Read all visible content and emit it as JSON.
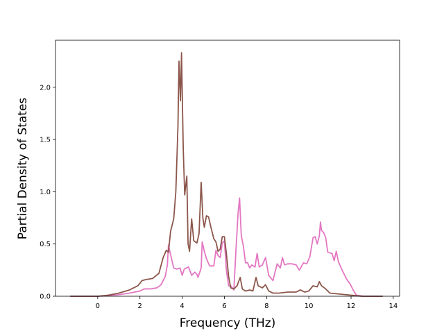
{
  "chart_data": {
    "type": "line",
    "title": "",
    "xlabel": "Frequency (THz)",
    "ylabel": "Partial Density of States",
    "xlim": [
      -2,
      14.3
    ],
    "ylim": [
      0.0,
      2.45
    ],
    "xticks": [
      0,
      2,
      4,
      6,
      8,
      10,
      12,
      14
    ],
    "xtick_labels": [
      "0",
      "2",
      "4",
      "6",
      "8",
      "10",
      "12",
      "14"
    ],
    "yticks": [
      0.0,
      0.5,
      1.0,
      1.5,
      2.0
    ],
    "ytick_labels": [
      "0.0",
      "0.5",
      "1.0",
      "1.5",
      "2.0"
    ],
    "grid": false,
    "series": [
      {
        "color": "#e377c2",
        "points": [
          [
            -1.3,
            0.0
          ],
          [
            0.0,
            0.0
          ],
          [
            0.5,
            0.005
          ],
          [
            1.0,
            0.015
          ],
          [
            1.5,
            0.03
          ],
          [
            2.0,
            0.05
          ],
          [
            2.2,
            0.07
          ],
          [
            2.5,
            0.07
          ],
          [
            2.8,
            0.08
          ],
          [
            3.0,
            0.11
          ],
          [
            3.2,
            0.19
          ],
          [
            3.3,
            0.3
          ],
          [
            3.35,
            0.49
          ],
          [
            3.45,
            0.4
          ],
          [
            3.6,
            0.27
          ],
          [
            3.75,
            0.26
          ],
          [
            3.9,
            0.27
          ],
          [
            4.0,
            0.2
          ],
          [
            4.1,
            0.26
          ],
          [
            4.2,
            0.27
          ],
          [
            4.3,
            0.28
          ],
          [
            4.45,
            0.2
          ],
          [
            4.6,
            0.23
          ],
          [
            4.7,
            0.21
          ],
          [
            4.75,
            0.18
          ],
          [
            4.9,
            0.27
          ],
          [
            4.95,
            0.52
          ],
          [
            5.05,
            0.43
          ],
          [
            5.15,
            0.36
          ],
          [
            5.3,
            0.29
          ],
          [
            5.5,
            0.29
          ],
          [
            5.6,
            0.44
          ],
          [
            5.7,
            0.39
          ],
          [
            5.8,
            0.37
          ],
          [
            5.9,
            0.51
          ],
          [
            6.0,
            0.53
          ],
          [
            6.1,
            0.24
          ],
          [
            6.2,
            0.1
          ],
          [
            6.3,
            0.1
          ],
          [
            6.45,
            0.06
          ],
          [
            6.55,
            0.45
          ],
          [
            6.65,
            0.8
          ],
          [
            6.72,
            0.94
          ],
          [
            6.8,
            0.58
          ],
          [
            6.9,
            0.48
          ],
          [
            7.0,
            0.32
          ],
          [
            7.1,
            0.32
          ],
          [
            7.2,
            0.27
          ],
          [
            7.3,
            0.3
          ],
          [
            7.45,
            0.28
          ],
          [
            7.55,
            0.41
          ],
          [
            7.65,
            0.28
          ],
          [
            7.8,
            0.3
          ],
          [
            7.95,
            0.37
          ],
          [
            8.1,
            0.2
          ],
          [
            8.3,
            0.15
          ],
          [
            8.5,
            0.31
          ],
          [
            8.65,
            0.27
          ],
          [
            8.75,
            0.37
          ],
          [
            8.85,
            0.3
          ],
          [
            9.0,
            0.31
          ],
          [
            9.2,
            0.31
          ],
          [
            9.4,
            0.3
          ],
          [
            9.55,
            0.25
          ],
          [
            9.75,
            0.32
          ],
          [
            9.9,
            0.31
          ],
          [
            10.05,
            0.38
          ],
          [
            10.2,
            0.56
          ],
          [
            10.3,
            0.57
          ],
          [
            10.4,
            0.5
          ],
          [
            10.5,
            0.58
          ],
          [
            10.55,
            0.71
          ],
          [
            10.6,
            0.63
          ],
          [
            10.7,
            0.61
          ],
          [
            10.8,
            0.56
          ],
          [
            10.9,
            0.42
          ],
          [
            11.1,
            0.41
          ],
          [
            11.2,
            0.34
          ],
          [
            11.3,
            0.43
          ],
          [
            11.4,
            0.33
          ],
          [
            11.6,
            0.24
          ],
          [
            11.8,
            0.16
          ],
          [
            11.95,
            0.12
          ],
          [
            12.1,
            0.06
          ],
          [
            12.25,
            0.01
          ],
          [
            12.6,
            0.0
          ],
          [
            13.5,
            0.0
          ]
        ]
      },
      {
        "color": "#8c564b",
        "points": [
          [
            -1.3,
            0.0
          ],
          [
            0.0,
            0.0
          ],
          [
            0.5,
            0.01
          ],
          [
            1.0,
            0.03
          ],
          [
            1.5,
            0.06
          ],
          [
            1.9,
            0.1
          ],
          [
            2.1,
            0.15
          ],
          [
            2.3,
            0.16
          ],
          [
            2.6,
            0.17
          ],
          [
            2.9,
            0.22
          ],
          [
            3.1,
            0.37
          ],
          [
            3.25,
            0.44
          ],
          [
            3.35,
            0.42
          ],
          [
            3.45,
            0.62
          ],
          [
            3.6,
            0.74
          ],
          [
            3.7,
            1.0
          ],
          [
            3.8,
            1.62
          ],
          [
            3.85,
            2.25
          ],
          [
            3.92,
            1.87
          ],
          [
            3.97,
            2.33
          ],
          [
            4.05,
            1.42
          ],
          [
            4.12,
            0.97
          ],
          [
            4.22,
            1.15
          ],
          [
            4.28,
            0.5
          ],
          [
            4.35,
            0.43
          ],
          [
            4.45,
            0.74
          ],
          [
            4.55,
            0.53
          ],
          [
            4.7,
            0.51
          ],
          [
            4.8,
            0.6
          ],
          [
            4.9,
            1.09
          ],
          [
            4.98,
            0.75
          ],
          [
            5.05,
            0.66
          ],
          [
            5.15,
            0.77
          ],
          [
            5.25,
            0.76
          ],
          [
            5.35,
            0.67
          ],
          [
            5.5,
            0.55
          ],
          [
            5.6,
            0.52
          ],
          [
            5.7,
            0.43
          ],
          [
            5.8,
            0.45
          ],
          [
            5.9,
            0.57
          ],
          [
            6.0,
            0.57
          ],
          [
            6.1,
            0.4
          ],
          [
            6.2,
            0.19
          ],
          [
            6.3,
            0.08
          ],
          [
            6.45,
            0.07
          ],
          [
            6.6,
            0.1
          ],
          [
            6.75,
            0.18
          ],
          [
            6.85,
            0.07
          ],
          [
            7.0,
            0.05
          ],
          [
            7.2,
            0.06
          ],
          [
            7.35,
            0.05
          ],
          [
            7.5,
            0.18
          ],
          [
            7.6,
            0.1
          ],
          [
            7.8,
            0.08
          ],
          [
            7.95,
            0.11
          ],
          [
            8.1,
            0.05
          ],
          [
            8.3,
            0.03
          ],
          [
            8.6,
            0.03
          ],
          [
            9.0,
            0.04
          ],
          [
            9.4,
            0.04
          ],
          [
            9.6,
            0.06
          ],
          [
            9.8,
            0.04
          ],
          [
            10.0,
            0.05
          ],
          [
            10.2,
            0.1
          ],
          [
            10.4,
            0.09
          ],
          [
            10.5,
            0.14
          ],
          [
            10.6,
            0.1
          ],
          [
            10.8,
            0.07
          ],
          [
            11.0,
            0.03
          ],
          [
            11.5,
            0.02
          ],
          [
            12.0,
            0.01
          ],
          [
            12.5,
            0.0
          ],
          [
            13.5,
            0.0
          ]
        ]
      }
    ]
  }
}
